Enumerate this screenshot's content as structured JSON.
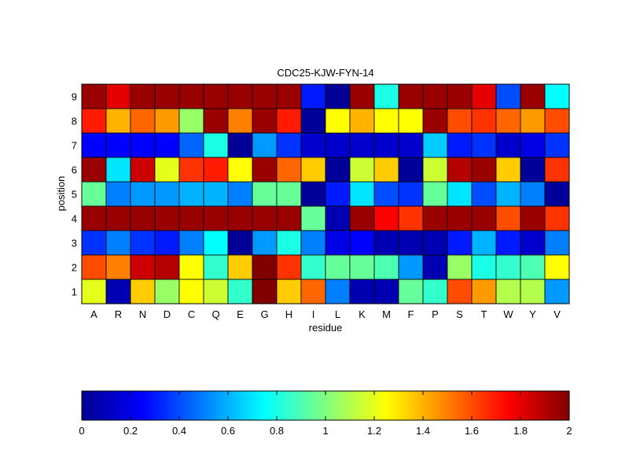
{
  "chart_data": {
    "type": "heatmap",
    "title": "CDC25-KJW-FYN-14",
    "xlabel": "residue",
    "ylabel": "position",
    "x_categories": [
      "A",
      "R",
      "N",
      "D",
      "C",
      "Q",
      "E",
      "G",
      "H",
      "I",
      "L",
      "K",
      "M",
      "F",
      "P",
      "S",
      "T",
      "W",
      "Y",
      "V"
    ],
    "y_categories": [
      "1",
      "2",
      "3",
      "4",
      "5",
      "6",
      "7",
      "8",
      "9"
    ],
    "values": [
      [
        1.2,
        0.1,
        1.35,
        1.05,
        1.25,
        1.15,
        0.85,
        2.0,
        1.35,
        1.55,
        0.5,
        0.1,
        0.1,
        0.95,
        0.85,
        1.6,
        1.45,
        1.1,
        1.1,
        0.55
      ],
      [
        1.6,
        1.5,
        1.85,
        1.9,
        1.25,
        0.85,
        1.35,
        2.0,
        1.65,
        0.85,
        0.95,
        0.95,
        0.9,
        0.55,
        0.1,
        1.05,
        0.8,
        0.85,
        0.9,
        1.25
      ],
      [
        0.35,
        0.5,
        0.35,
        0.3,
        0.5,
        0.75,
        0.05,
        0.55,
        0.8,
        0.5,
        0.2,
        0.25,
        0.1,
        0.1,
        0.1,
        0.3,
        0.6,
        0.3,
        0.15,
        0.5
      ],
      [
        1.95,
        1.95,
        1.95,
        1.95,
        1.95,
        1.95,
        1.95,
        1.95,
        1.95,
        0.95,
        0.1,
        1.95,
        1.75,
        1.65,
        1.95,
        1.95,
        1.95,
        1.6,
        1.95,
        1.65
      ],
      [
        0.95,
        0.5,
        0.55,
        0.55,
        0.6,
        0.6,
        0.5,
        0.95,
        0.95,
        0.05,
        0.3,
        0.7,
        0.4,
        0.35,
        0.95,
        0.7,
        0.4,
        0.6,
        0.5,
        0.05
      ],
      [
        1.95,
        0.7,
        1.85,
        1.2,
        1.65,
        1.7,
        1.25,
        1.95,
        1.55,
        1.35,
        0.05,
        1.15,
        1.35,
        0.05,
        1.15,
        1.9,
        1.95,
        1.35,
        0.05,
        1.65
      ],
      [
        0.25,
        0.25,
        0.25,
        0.25,
        0.45,
        0.8,
        0.05,
        0.55,
        0.35,
        0.15,
        0.15,
        0.15,
        0.15,
        0.15,
        0.65,
        0.3,
        0.35,
        0.15,
        0.2,
        0.35
      ],
      [
        1.7,
        1.4,
        1.55,
        1.45,
        1.05,
        1.95,
        1.5,
        1.95,
        1.7,
        0.05,
        1.25,
        1.4,
        1.25,
        1.25,
        1.95,
        1.6,
        1.65,
        1.55,
        1.45,
        1.6
      ],
      [
        1.95,
        1.8,
        1.95,
        1.95,
        1.95,
        1.95,
        1.95,
        1.95,
        1.95,
        0.3,
        0.05,
        1.95,
        0.8,
        1.95,
        1.95,
        1.95,
        1.8,
        0.4,
        1.95,
        0.75
      ]
    ],
    "colorbar": {
      "range": [
        0,
        2
      ],
      "ticks": [
        "0",
        "0.2",
        "0.4",
        "0.6",
        "0.8",
        "1",
        "1.2",
        "1.4",
        "1.6",
        "1.8",
        "2"
      ],
      "colormap": "jet"
    },
    "grid": false,
    "legend": "none"
  }
}
